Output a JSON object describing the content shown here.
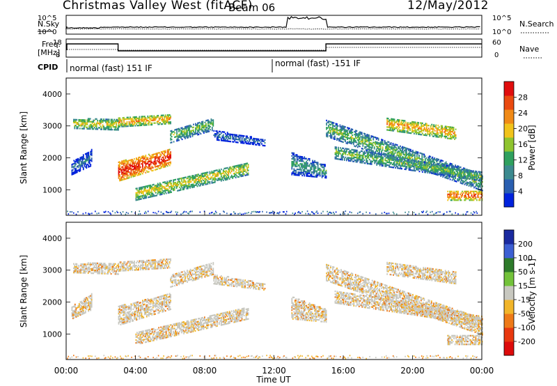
{
  "header": {
    "title": "Christmas Valley West (fitACF)",
    "beam": "Beam 06",
    "date": "12/May/2012"
  },
  "noise_panel": {
    "left_label": "N.Sky",
    "right_label": "N.Search",
    "tick_top": "10^5",
    "tick_bottom": "10^0"
  },
  "freq_panel": {
    "left_label_1": "Freq.",
    "left_label_2": "[MHz]",
    "right_label": "Nave",
    "left_ticks": [
      "18",
      "8"
    ],
    "right_ticks": [
      "60",
      "0"
    ]
  },
  "cpid": {
    "label": "CPID",
    "segments": [
      "normal (fast) 151 IF",
      "normal (fast) -151 IF"
    ]
  },
  "chart_data": [
    {
      "type": "heatmap",
      "panel": "power",
      "ylabel": "Slant Range [km]",
      "yticks": [
        "1000",
        "2000",
        "3000",
        "4000"
      ],
      "ylim": [
        200,
        4500
      ],
      "colorbar_label": "Power [dB]",
      "colorbar_ticks": [
        "28",
        "24",
        "20",
        "16",
        "12",
        "8",
        "4"
      ],
      "colorbar_colors": [
        "#0022dd",
        "#2a5fb0",
        "#3c8a8f",
        "#2fa05e",
        "#8fc42f",
        "#f1c31b",
        "#f08a17",
        "#ea4a10",
        "#e00d0d"
      ],
      "features": [
        {
          "t": [
            0.5,
            3.0
          ],
          "r": [
            2900,
            3300
          ],
          "note": "band"
        },
        {
          "t": [
            3.0,
            6.0
          ],
          "r": [
            1300,
            2200
          ],
          "note": "strong echo"
        },
        {
          "t": [
            6.0,
            9.0
          ],
          "r": [
            2500,
            3300
          ],
          "note": "arc"
        },
        {
          "t": [
            6.0,
            11.0
          ],
          "r": [
            800,
            1800
          ],
          "note": "band"
        },
        {
          "t": [
            15.0,
            24.0
          ],
          "r": [
            1000,
            3300
          ],
          "note": "bands"
        }
      ]
    },
    {
      "type": "heatmap",
      "panel": "velocity",
      "ylabel": "Slant Range [km]",
      "yticks": [
        "1000",
        "2000",
        "3000",
        "4000"
      ],
      "ylim": [
        200,
        4500
      ],
      "xlabel": "Time UT",
      "xticks": [
        "00:00",
        "04:00",
        "08:00",
        "12:00",
        "16:00",
        "20:00",
        "00:00"
      ],
      "xlim_hours": [
        0,
        24
      ],
      "colorbar_label": "Velocity [m s-1]",
      "colorbar_ticks": [
        "200",
        "100",
        "50",
        "15",
        "-15",
        "-50",
        "-100",
        "-200"
      ],
      "colorbar_colors": [
        "#1a2a9f",
        "#3c5fd2",
        "#2d7a2a",
        "#73c23a",
        "#c8c8c0",
        "#f1b52a",
        "#ee7a18",
        "#e8380f",
        "#dd0b0b"
      ]
    }
  ]
}
